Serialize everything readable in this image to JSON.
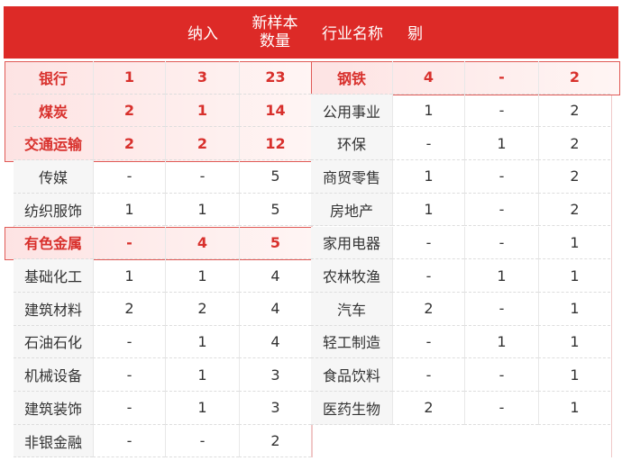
{
  "header": {
    "col_in": "纳入",
    "col_new": "新样本",
    "col_new2": "数量",
    "col_name": "行业名称",
    "col_out": "剔"
  },
  "left_rows": [
    {
      "name": "银行",
      "a": "1",
      "b": "3",
      "c": "23",
      "hl": true
    },
    {
      "name": "煤炭",
      "a": "2",
      "b": "1",
      "c": "14",
      "hl": true
    },
    {
      "name": "交通运输",
      "a": "2",
      "b": "2",
      "c": "12",
      "hl": true
    },
    {
      "name": "传媒",
      "a": "-",
      "b": "-",
      "c": "5"
    },
    {
      "name": "纺织服饰",
      "a": "1",
      "b": "1",
      "c": "5"
    },
    {
      "name": "有色金属",
      "a": "-",
      "b": "4",
      "c": "5",
      "hl": true
    },
    {
      "name": "基础化工",
      "a": "1",
      "b": "1",
      "c": "4"
    },
    {
      "name": "建筑材料",
      "a": "2",
      "b": "2",
      "c": "4"
    },
    {
      "name": "石油石化",
      "a": "-",
      "b": "1",
      "c": "4"
    },
    {
      "name": "机械设备",
      "a": "-",
      "b": "1",
      "c": "3"
    },
    {
      "name": "建筑装饰",
      "a": "-",
      "b": "1",
      "c": "3"
    },
    {
      "name": "非银金融",
      "a": "-",
      "b": "-",
      "c": "2"
    }
  ],
  "right_rows": [
    {
      "name": "钢铁",
      "a": "4",
      "b": "-",
      "c": "2",
      "hl": true
    },
    {
      "name": "公用事业",
      "a": "1",
      "b": "-",
      "c": "2"
    },
    {
      "name": "环保",
      "a": "-",
      "b": "1",
      "c": "2"
    },
    {
      "name": "商贸零售",
      "a": "1",
      "b": "-",
      "c": "2"
    },
    {
      "name": "房地产",
      "a": "1",
      "b": "-",
      "c": "2"
    },
    {
      "name": "家用电器",
      "a": "-",
      "b": "-",
      "c": "1"
    },
    {
      "name": "农林牧渔",
      "a": "-",
      "b": "1",
      "c": "1"
    },
    {
      "name": "汽车",
      "a": "2",
      "b": "-",
      "c": "1"
    },
    {
      "name": "轻工制造",
      "a": "-",
      "b": "1",
      "c": "1"
    },
    {
      "name": "食品饮料",
      "a": "-",
      "b": "-",
      "c": "1"
    },
    {
      "name": "医药生物",
      "a": "2",
      "b": "-",
      "c": "1"
    }
  ]
}
